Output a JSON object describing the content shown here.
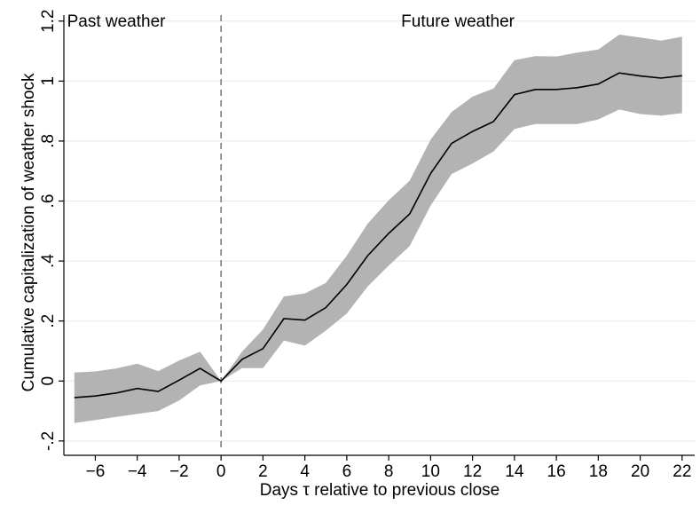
{
  "chart_data": {
    "type": "line",
    "xlabel": "Days τ relative to previous close",
    "ylabel": "Cumulative capitalization of weather shock",
    "xlim": [
      -7.5,
      22.6
    ],
    "ylim": [
      -0.23,
      1.22
    ],
    "xticks": [
      -6,
      -4,
      -2,
      0,
      2,
      4,
      6,
      8,
      10,
      12,
      14,
      16,
      18,
      20,
      22
    ],
    "yticks": [
      -0.2,
      0,
      0.2,
      0.4,
      0.6,
      0.8,
      1,
      1.2
    ],
    "ytick_labels": [
      ".2",
      "0",
      ".2",
      ".4",
      ".6",
      ".8",
      "1",
      "1.2"
    ],
    "ytick_signs": [
      "-",
      "",
      "",
      "",
      "",
      "",
      "",
      ""
    ],
    "grid": "horizontal",
    "vline": {
      "x": 0,
      "style": "dashed"
    },
    "annotations": [
      {
        "text": "Past weather",
        "x": -5
      },
      {
        "text": "Future weather",
        "x": 11.3
      }
    ],
    "series": [
      {
        "x": [
          -7,
          -6,
          -5,
          -4,
          -3,
          -2,
          -1,
          0,
          1,
          2,
          3,
          4,
          5,
          6,
          7,
          8,
          9,
          10,
          11,
          12,
          13,
          14,
          15,
          16,
          17,
          18,
          19,
          20,
          21,
          22
        ],
        "y": [
          -0.055,
          -0.05,
          -0.04,
          -0.025,
          -0.035,
          0.003,
          0.042,
          0.0,
          0.072,
          0.108,
          0.208,
          0.203,
          0.245,
          0.322,
          0.418,
          0.492,
          0.557,
          0.692,
          0.792,
          0.832,
          0.865,
          0.955,
          0.972,
          0.972,
          0.978,
          0.99,
          1.027,
          1.017,
          1.01,
          1.018
        ],
        "lower": [
          -0.14,
          -0.13,
          -0.12,
          -0.11,
          -0.1,
          -0.065,
          -0.015,
          0.0,
          0.043,
          0.043,
          0.135,
          0.118,
          0.168,
          0.225,
          0.315,
          0.385,
          0.45,
          0.585,
          0.69,
          0.725,
          0.765,
          0.84,
          0.857,
          0.857,
          0.857,
          0.872,
          0.905,
          0.89,
          0.885,
          0.893
        ],
        "upper": [
          0.028,
          0.032,
          0.042,
          0.058,
          0.033,
          0.068,
          0.098,
          0.0,
          0.098,
          0.172,
          0.282,
          0.292,
          0.327,
          0.418,
          0.525,
          0.602,
          0.668,
          0.805,
          0.897,
          0.948,
          0.975,
          1.07,
          1.083,
          1.082,
          1.095,
          1.105,
          1.155,
          1.145,
          1.135,
          1.148
        ],
        "line_color": "#000000",
        "band_color": "#b3b3b3"
      }
    ],
    "colors": {
      "grid": "#e8e8e8",
      "vline": "#7f7f7f",
      "axis": "#000000"
    }
  }
}
